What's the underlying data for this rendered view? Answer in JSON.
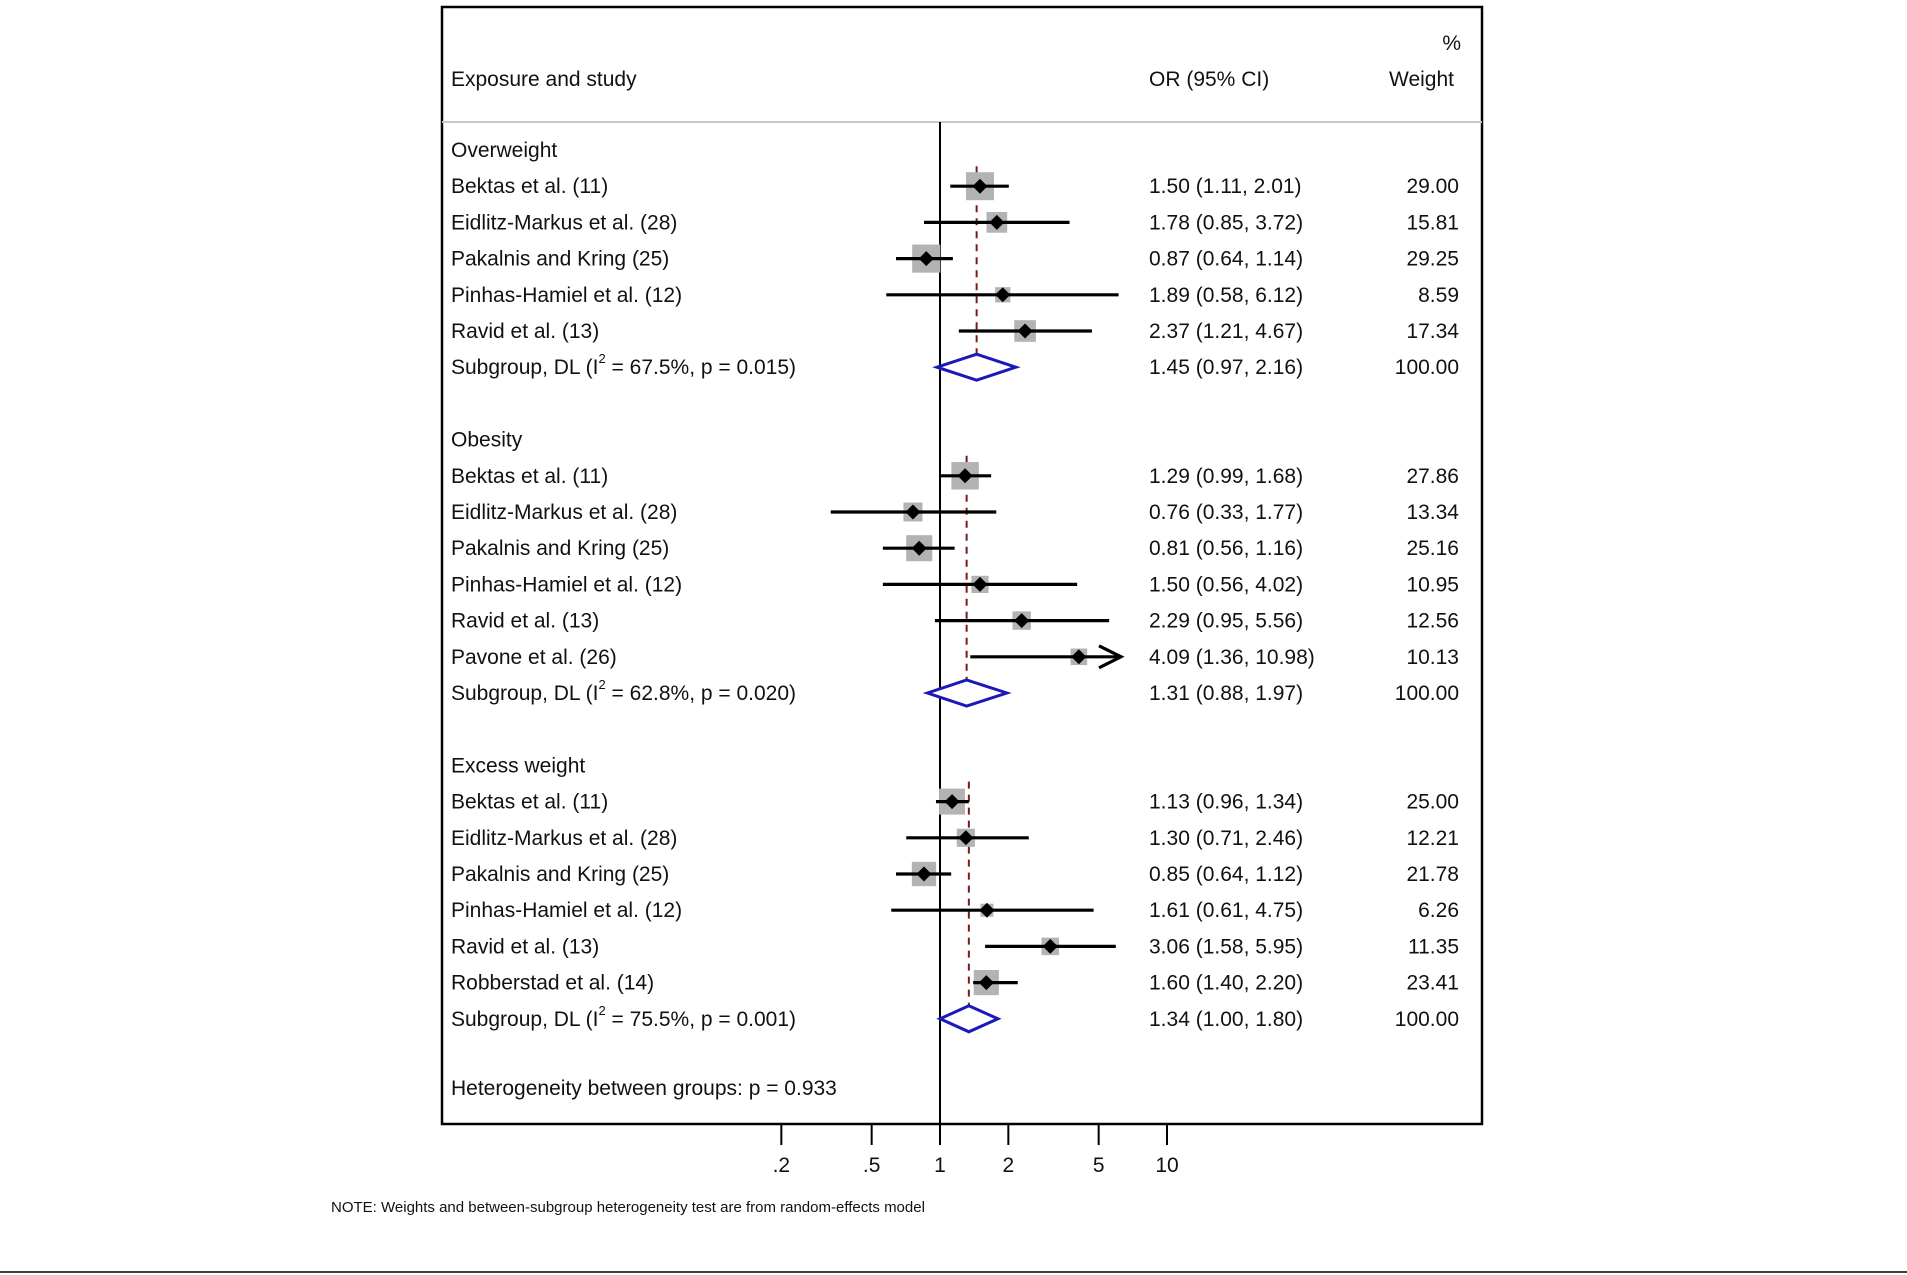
{
  "chart_data": {
    "type": "forest",
    "header": {
      "study": "Exposure and study",
      "ci": "OR (95% CI)",
      "weight_pct": "%",
      "weight": "Weight"
    },
    "x_scale": "log",
    "xlim": [
      0.2,
      10
    ],
    "x_ticks": [
      {
        "value": 0.2,
        "label": ".2"
      },
      {
        "value": 0.5,
        "label": ".5"
      },
      {
        "value": 1,
        "label": "1"
      },
      {
        "value": 2,
        "label": "2"
      },
      {
        "value": 5,
        "label": "5"
      },
      {
        "value": 10,
        "label": "10"
      }
    ],
    "null_line": 1,
    "groups": [
      {
        "name": "Overweight",
        "studies": [
          {
            "name": "Bektas et al. (11)",
            "or": 1.5,
            "lo": 1.11,
            "hi": 2.01,
            "ci_text": "1.50 (1.11, 2.01)",
            "weight": 29.0,
            "weight_text": "29.00"
          },
          {
            "name": "Eidlitz-Markus et al. (28)",
            "or": 1.78,
            "lo": 0.85,
            "hi": 3.72,
            "ci_text": "1.78 (0.85, 3.72)",
            "weight": 15.81,
            "weight_text": "15.81"
          },
          {
            "name": "Pakalnis and Kring (25)",
            "or": 0.87,
            "lo": 0.64,
            "hi": 1.14,
            "ci_text": "0.87 (0.64, 1.14)",
            "weight": 29.25,
            "weight_text": "29.25"
          },
          {
            "name": "Pinhas-Hamiel et al. (12)",
            "or": 1.89,
            "lo": 0.58,
            "hi": 6.12,
            "ci_text": "1.89 (0.58, 6.12)",
            "weight": 8.59,
            "weight_text": "8.59"
          },
          {
            "name": "Ravid et al. (13)",
            "or": 2.37,
            "lo": 1.21,
            "hi": 4.67,
            "ci_text": "2.37 (1.21, 4.67)",
            "weight": 17.34,
            "weight_text": "17.34"
          }
        ],
        "subgroup": {
          "label_pre": "Subgroup, DL (I",
          "sup": "2",
          "label_post": " = 67.5%, p = 0.015)",
          "or": 1.45,
          "lo": 0.97,
          "hi": 2.16,
          "ci_text": "1.45 (0.97, 2.16)",
          "weight_text": "100.00"
        }
      },
      {
        "name": "Obesity",
        "studies": [
          {
            "name": "Bektas et al. (11)",
            "or": 1.29,
            "lo": 0.99,
            "hi": 1.68,
            "ci_text": "1.29 (0.99, 1.68)",
            "weight": 27.86,
            "weight_text": "27.86"
          },
          {
            "name": "Eidlitz-Markus et al. (28)",
            "or": 0.76,
            "lo": 0.33,
            "hi": 1.77,
            "ci_text": "0.76 (0.33, 1.77)",
            "weight": 13.34,
            "weight_text": "13.34"
          },
          {
            "name": "Pakalnis and Kring (25)",
            "or": 0.81,
            "lo": 0.56,
            "hi": 1.16,
            "ci_text": "0.81 (0.56, 1.16)",
            "weight": 25.16,
            "weight_text": "25.16"
          },
          {
            "name": "Pinhas-Hamiel et al. (12)",
            "or": 1.5,
            "lo": 0.56,
            "hi": 4.02,
            "ci_text": "1.50 (0.56, 4.02)",
            "weight": 10.95,
            "weight_text": "10.95"
          },
          {
            "name": "Ravid et al. (13)",
            "or": 2.29,
            "lo": 0.95,
            "hi": 5.56,
            "ci_text": "2.29 (0.95, 5.56)",
            "weight": 12.56,
            "weight_text": "12.56"
          },
          {
            "name": "Pavone et al. (26)",
            "or": 4.09,
            "lo": 1.36,
            "hi": 10.98,
            "ci_text": "4.09 (1.36, 10.98)",
            "weight": 10.13,
            "weight_text": "10.13"
          }
        ],
        "subgroup": {
          "label_pre": "Subgroup, DL (I",
          "sup": "2",
          "label_post": " = 62.8%, p = 0.020)",
          "or": 1.31,
          "lo": 0.88,
          "hi": 1.97,
          "ci_text": "1.31 (0.88, 1.97)",
          "weight_text": "100.00"
        }
      },
      {
        "name": "Excess weight",
        "studies": [
          {
            "name": "Bektas et al. (11)",
            "or": 1.13,
            "lo": 0.96,
            "hi": 1.34,
            "ci_text": "1.13 (0.96, 1.34)",
            "weight": 25.0,
            "weight_text": "25.00"
          },
          {
            "name": "Eidlitz-Markus et al. (28)",
            "or": 1.3,
            "lo": 0.71,
            "hi": 2.46,
            "ci_text": "1.30 (0.71, 2.46)",
            "weight": 12.21,
            "weight_text": "12.21"
          },
          {
            "name": "Pakalnis and Kring (25)",
            "or": 0.85,
            "lo": 0.64,
            "hi": 1.12,
            "ci_text": "0.85 (0.64, 1.12)",
            "weight": 21.78,
            "weight_text": "21.78"
          },
          {
            "name": "Pinhas-Hamiel et al. (12)",
            "or": 1.61,
            "lo": 0.61,
            "hi": 4.75,
            "ci_text": "1.61 (0.61, 4.75)",
            "weight": 6.26,
            "weight_text": "6.26"
          },
          {
            "name": "Ravid et al. (13)",
            "or": 3.06,
            "lo": 1.58,
            "hi": 5.95,
            "ci_text": "3.06 (1.58, 5.95)",
            "weight": 11.35,
            "weight_text": "11.35"
          },
          {
            "name": "Robberstad et al. (14)",
            "or": 1.6,
            "lo": 1.4,
            "hi": 2.2,
            "ci_text": "1.60 (1.40, 2.20)",
            "weight": 23.41,
            "weight_text": "23.41"
          }
        ],
        "subgroup": {
          "label_pre": "Subgroup, DL (I",
          "sup": "2",
          "label_post": " = 75.5%, p = 0.001)",
          "or": 1.34,
          "lo": 1.0,
          "hi": 1.8,
          "ci_text": "1.34 (1.00, 1.80)",
          "weight_text": "100.00"
        }
      }
    ],
    "heterogeneity": "Heterogeneity between groups: p = 0.933",
    "note": "NOTE: Weights and between-subgroup heterogeneity test are from random-effects model",
    "colors": {
      "ci_line": "#000000",
      "point": "#000000",
      "weight_box": "#b3b3b3",
      "diamond": "#1a1ab8",
      "pooled_line": "#7a1a1a",
      "frame": "#000000"
    }
  }
}
